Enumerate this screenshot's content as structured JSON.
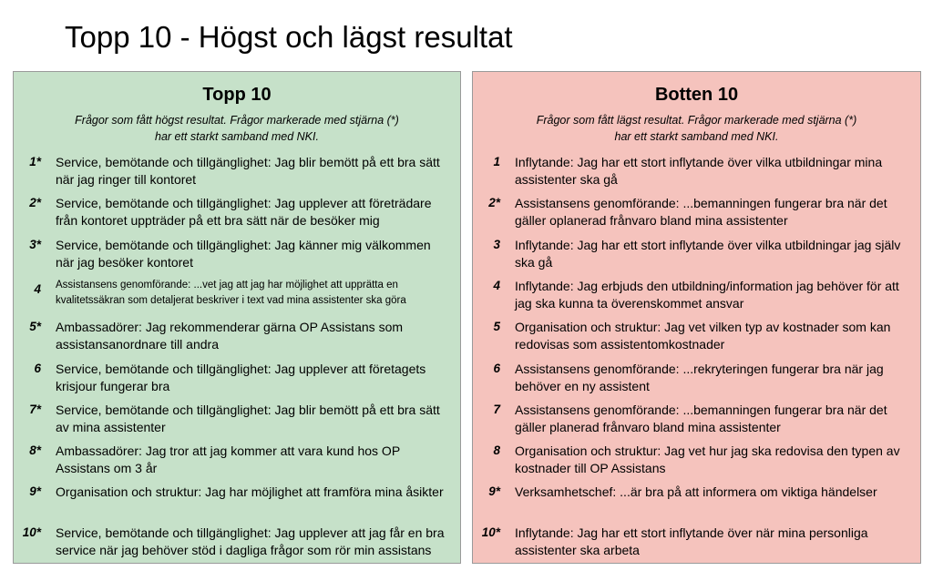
{
  "slide": {
    "title": "Topp 10 - Högst och lägst resultat"
  },
  "top_panel": {
    "heading": "Topp 10",
    "subtitle_line1": "Frågor som fått högst resultat. Frågor markerade med stjärna (*)",
    "subtitle_line2": "har ett starkt samband med NKI.",
    "color": "#c6e1c9",
    "items": [
      {
        "num": "1*",
        "line1": "Service, bemötande och tillgänglighet: Jag blir bemött på ett bra sätt",
        "line2": "när jag ringer till kontoret"
      },
      {
        "num": "2*",
        "line1": "Service, bemötande och tillgänglighet: Jag upplever att företrädare",
        "line2": "från kontoret uppträder på ett bra sätt när de besöker mig"
      },
      {
        "num": "3*",
        "line1": "Service, bemötande och tillgänglighet: Jag känner mig välkommen",
        "line2": "när jag besöker kontoret"
      },
      {
        "num": "4",
        "line1": "Assistansens genomförande: ...vet jag att jag har möjlighet att upprätta en",
        "line2": "kvalitetssäkran som detaljerat beskriver i text vad mina assistenter ska göra"
      },
      {
        "num": "5*",
        "line1": "Ambassadörer: Jag rekommenderar gärna OP Assistans som",
        "line2": "assistansanordnare till andra"
      },
      {
        "num": "6",
        "line1": "Service, bemötande och tillgänglighet: Jag upplever att företagets",
        "line2": "krisjour fungerar bra"
      },
      {
        "num": "7*",
        "line1": "Service, bemötande och tillgänglighet: Jag blir bemött på ett bra sätt",
        "line2": "av mina assistenter"
      },
      {
        "num": "8*",
        "line1": "Ambassadörer: Jag tror att jag kommer att vara kund hos OP",
        "line2": "Assistans om 3 år"
      },
      {
        "num": "9*",
        "line1": "Organisation och struktur: Jag har möjlighet att framföra mina åsikter",
        "line2": ""
      },
      {
        "num": "10*",
        "line1": "Service, bemötande och tillgänglighet: Jag upplever att jag får en bra",
        "line2": "service när jag behöver stöd i dagliga frågor som rör min assistans"
      }
    ]
  },
  "bottom_panel": {
    "heading": "Botten 10",
    "subtitle_line1": "Frågor som fått lägst resultat. Frågor markerade med stjärna (*)",
    "subtitle_line2": "har ett starkt samband med NKI.",
    "color": "#f5c3bd",
    "items": [
      {
        "num": "1",
        "line1": "Inflytande: Jag har ett stort inflytande över vilka utbildningar mina",
        "line2": "assistenter ska gå"
      },
      {
        "num": "2*",
        "line1": "Assistansens genomförande: ...bemanningen fungerar bra när det",
        "line2": "gäller oplanerad frånvaro bland mina assistenter"
      },
      {
        "num": "3",
        "line1": "Inflytande: Jag har ett stort inflytande över vilka utbildningar jag själv",
        "line2": "ska gå"
      },
      {
        "num": "4",
        "line1": "Inflytande: Jag erbjuds den utbildning/information jag behöver för att",
        "line2": "jag ska kunna ta överenskommet ansvar"
      },
      {
        "num": "5",
        "line1": "Organisation och struktur: Jag vet vilken typ av kostnader som kan",
        "line2": "redovisas som assistentomkostnader"
      },
      {
        "num": "6",
        "line1": "Assistansens genomförande: ...rekryteringen fungerar bra när jag",
        "line2": "behöver en ny assistent"
      },
      {
        "num": "7",
        "line1": "Assistansens genomförande: ...bemanningen fungerar bra när det",
        "line2": "gäller planerad frånvaro bland mina assistenter"
      },
      {
        "num": "8",
        "line1": "Organisation och struktur: Jag vet hur jag ska redovisa den typen av",
        "line2": "kostnader till OP Assistans"
      },
      {
        "num": "9*",
        "line1": "Verksamhetschef: ...är bra på att informera om viktiga händelser",
        "line2": ""
      },
      {
        "num": "10*",
        "line1": "Inflytande: Jag har ett stort inflytande över när mina personliga",
        "line2": "assistenter ska arbeta"
      }
    ]
  }
}
